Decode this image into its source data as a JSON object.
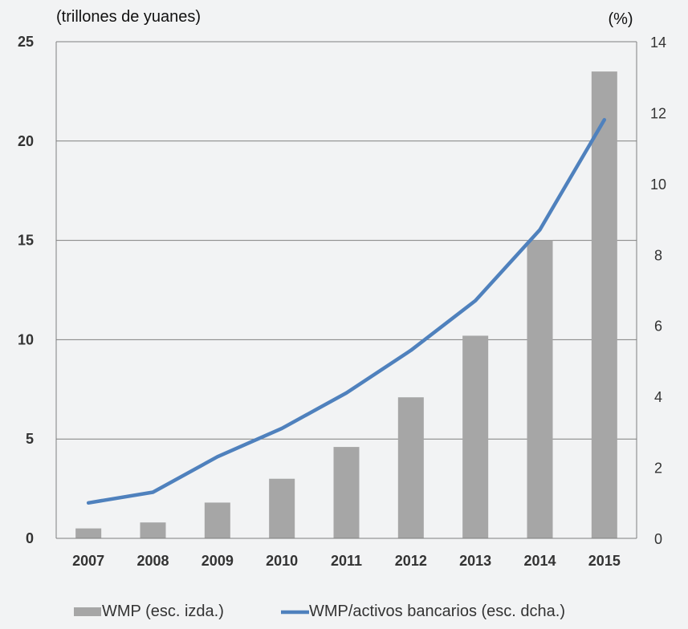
{
  "chart_data": {
    "type": "bar",
    "left_unit_label": "(trillones de yuanes)",
    "right_unit_label": "(%)",
    "categories": [
      "2007",
      "2008",
      "2009",
      "2010",
      "2011",
      "2012",
      "2013",
      "2014",
      "2015"
    ],
    "y_left": {
      "range": [
        0,
        25
      ],
      "ticks": [
        "0",
        "5",
        "10",
        "15",
        "20",
        "25"
      ]
    },
    "y_right": {
      "range": [
        0,
        14
      ],
      "ticks": [
        "0",
        "2",
        "4",
        "6",
        "8",
        "10",
        "12",
        "14"
      ]
    },
    "series": [
      {
        "name": "WMP  (esc. izda.)",
        "type": "bar",
        "axis": "left",
        "color": "#a6a6a6",
        "values": [
          0.5,
          0.8,
          1.8,
          3.0,
          4.6,
          7.1,
          10.2,
          15.0,
          23.5
        ]
      },
      {
        "name": "WMP/activos bancarios (esc. dcha.)",
        "type": "line",
        "axis": "right",
        "color": "#4f81bd",
        "values": [
          1.0,
          1.3,
          2.3,
          3.1,
          4.1,
          5.3,
          6.7,
          8.7,
          11.8
        ]
      }
    ],
    "grid": "horizontal",
    "legend_position": "bottom"
  }
}
